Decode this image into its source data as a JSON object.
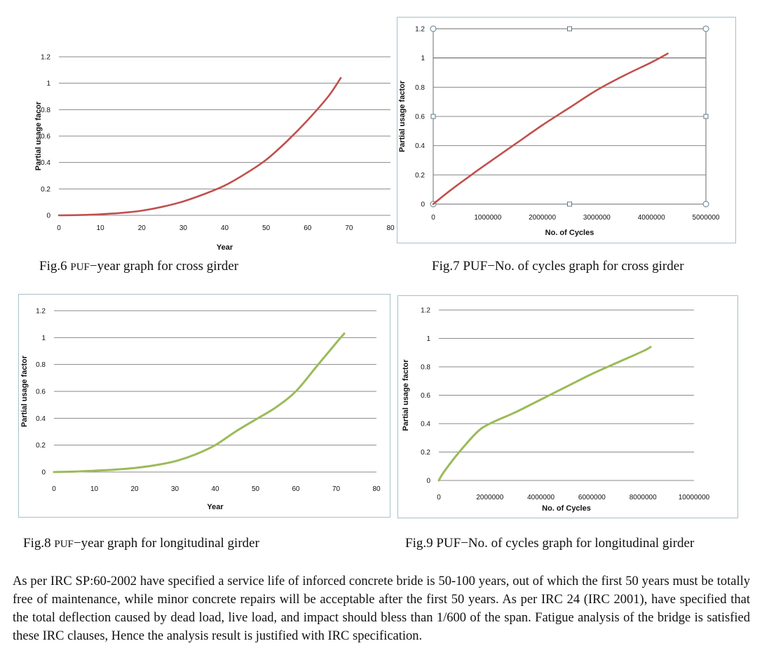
{
  "chart_data": [
    {
      "type": "line",
      "id": "fig6",
      "xlabel": "Year",
      "ylabel": "Partial usage facor",
      "xlim": [
        0,
        80
      ],
      "ylim": [
        0,
        1.2
      ],
      "xticks": [
        "0",
        "10",
        "20",
        "30",
        "40",
        "50",
        "60",
        "70",
        "80"
      ],
      "yticks": [
        "0",
        "0.2",
        "0.4",
        "0.6",
        "0.8",
        "1",
        "1.2"
      ],
      "series": [
        {
          "name": "PUF",
          "color": "#c0504d",
          "x": [
            0,
            5,
            10,
            15,
            20,
            25,
            30,
            35,
            40,
            45,
            50,
            55,
            60,
            65,
            68
          ],
          "y": [
            0,
            0.002,
            0.008,
            0.018,
            0.035,
            0.065,
            0.105,
            0.16,
            0.225,
            0.315,
            0.42,
            0.56,
            0.72,
            0.9,
            1.04
          ]
        }
      ]
    },
    {
      "type": "line",
      "id": "fig7",
      "xlabel": "No. of Cycles",
      "ylabel": "Partial usage factor",
      "xlim": [
        0,
        5000000
      ],
      "ylim": [
        0,
        1.2
      ],
      "xticks": [
        "0",
        "1000000",
        "2000000",
        "3000000",
        "4000000",
        "5000000"
      ],
      "yticks": [
        "0",
        "0.2",
        "0.4",
        "0.6",
        "0.8",
        "1",
        "1.2"
      ],
      "series": [
        {
          "name": "PUF",
          "color": "#c0504d",
          "x": [
            0,
            300000,
            700000,
            1000000,
            1500000,
            2000000,
            2500000,
            3000000,
            3500000,
            4000000,
            4300000
          ],
          "y": [
            0,
            0.09,
            0.2,
            0.28,
            0.41,
            0.54,
            0.66,
            0.78,
            0.88,
            0.97,
            1.03
          ]
        }
      ]
    },
    {
      "type": "line",
      "id": "fig8",
      "xlabel": "Year",
      "ylabel": "Partial usage factor",
      "xlim": [
        0,
        80
      ],
      "ylim": [
        0,
        1.2
      ],
      "xticks": [
        "0",
        "10",
        "20",
        "30",
        "40",
        "50",
        "60",
        "70",
        "80"
      ],
      "yticks": [
        "0",
        "0.2",
        "0.4",
        "0.6",
        "0.8",
        "1",
        "1.2"
      ],
      "series": [
        {
          "name": "PUF",
          "color": "#9bbb59",
          "x": [
            0,
            5,
            10,
            15,
            20,
            25,
            30,
            35,
            40,
            45,
            50,
            55,
            60,
            65,
            70,
            72
          ],
          "y": [
            0,
            0.003,
            0.01,
            0.018,
            0.03,
            0.05,
            0.08,
            0.13,
            0.2,
            0.3,
            0.39,
            0.48,
            0.6,
            0.78,
            0.96,
            1.03
          ]
        }
      ]
    },
    {
      "type": "line",
      "id": "fig9",
      "xlabel": "No. of Cycles",
      "ylabel": "Partial usage factor",
      "xlim": [
        0,
        10000000
      ],
      "ylim": [
        0,
        1.2
      ],
      "xticks": [
        "0",
        "2000000",
        "4000000",
        "6000000",
        "8000000",
        "10000000"
      ],
      "yticks": [
        "0",
        "0.2",
        "0.4",
        "0.6",
        "0.8",
        "1",
        "1.2"
      ],
      "series": [
        {
          "name": "PUF",
          "color": "#9bbb59",
          "x": [
            0,
            200000,
            800000,
            1500000,
            2000000,
            3000000,
            4000000,
            5000000,
            6000000,
            7000000,
            8000000,
            8300000
          ],
          "y": [
            0,
            0.06,
            0.2,
            0.34,
            0.4,
            0.48,
            0.57,
            0.66,
            0.75,
            0.83,
            0.91,
            0.94
          ]
        }
      ]
    }
  ],
  "captions": {
    "fig6": {
      "a": "Fig.6 ",
      "b": "PUF",
      "c": "−year graph for cross girder"
    },
    "fig7": {
      "a": "Fig.7 PUF−No. of cycles graph for cross girder"
    },
    "fig8": {
      "a": "Fig.8 ",
      "b": "PUF",
      "c": "−year graph for longitudinal girder"
    },
    "fig9": {
      "a": "Fig.9 PUF−No. of cycles graph for longitudinal girder"
    }
  },
  "body": {
    "paragraph": "As per IRC SP:60-2002  have specified a service life of inforced concrete bride is 50-100 years, out of which the first 50 years must be totally free of maintenance, while minor concrete repairs will be acceptable after the first 50 years. As per IRC 24 (IRC 2001), have specified that the total deflection caused by dead load, live load, and impact should bless than 1/600 of the span. Fatigue analysis of the bridge is satisfied these IRC clauses, Hence the analysis result is justified with IRC specification."
  }
}
